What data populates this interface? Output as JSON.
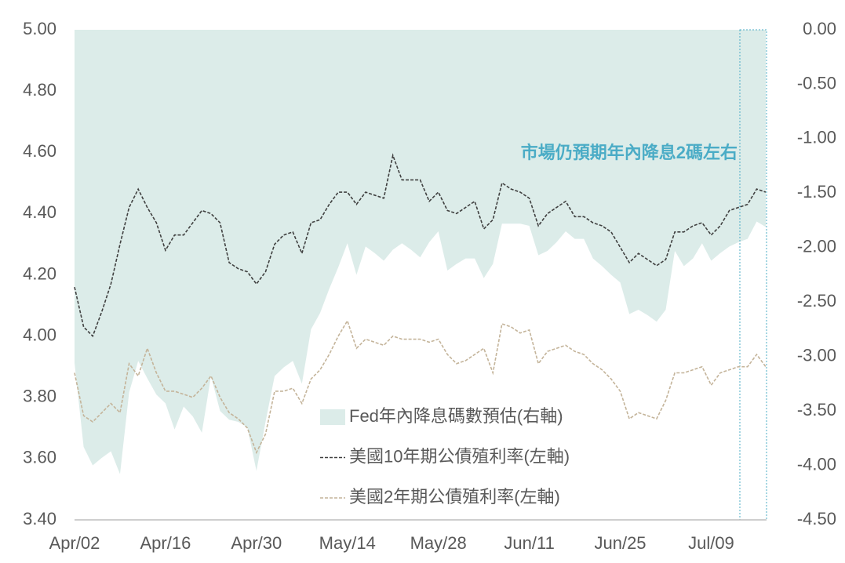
{
  "chart_data": {
    "type": "line",
    "annotation": "市場仍預期年內降息2碼左右",
    "categories": [
      "Apr/02",
      null,
      null,
      null,
      null,
      null,
      null,
      null,
      null,
      null,
      "Apr/16",
      null,
      null,
      null,
      null,
      null,
      null,
      null,
      null,
      null,
      "Apr/30",
      null,
      null,
      null,
      null,
      null,
      null,
      null,
      null,
      null,
      "May/14",
      null,
      null,
      null,
      null,
      null,
      null,
      null,
      null,
      null,
      "May/28",
      null,
      null,
      null,
      null,
      null,
      null,
      null,
      null,
      null,
      "Jun/11",
      null,
      null,
      null,
      null,
      null,
      null,
      null,
      null,
      null,
      "Jun/25",
      null,
      null,
      null,
      null,
      null,
      null,
      null,
      null,
      null,
      "Jul/09",
      null,
      null,
      null,
      null,
      null,
      null
    ],
    "ylim": [
      3.4,
      5.0
    ],
    "yticks": [
      {
        "value": 3.4,
        "label": "3.40"
      },
      {
        "value": 3.6,
        "label": "3.60"
      },
      {
        "value": 3.8,
        "label": "3.80"
      },
      {
        "value": 4.0,
        "label": "4.00"
      },
      {
        "value": 4.2,
        "label": "4.20"
      },
      {
        "value": 4.4,
        "label": "4.40"
      },
      {
        "value": 4.6,
        "label": "4.60"
      },
      {
        "value": 4.8,
        "label": "4.80"
      },
      {
        "value": 5.0,
        "label": "5.00"
      }
    ],
    "y2lim": [
      -4.5,
      0
    ],
    "y2ticks": [
      {
        "value": -4.5,
        "label": "-4.50"
      },
      {
        "value": -4.0,
        "label": "-4.00"
      },
      {
        "value": -3.5,
        "label": "-3.50"
      },
      {
        "value": -3.0,
        "label": "-3.00"
      },
      {
        "value": -2.5,
        "label": "-2.50"
      },
      {
        "value": -2.0,
        "label": "-2.00"
      },
      {
        "value": -1.5,
        "label": "-1.50"
      },
      {
        "value": -1.0,
        "label": "-1.00"
      },
      {
        "value": -0.5,
        "label": "-0.50"
      },
      {
        "value": 0,
        "label": "0.00"
      }
    ],
    "series": [
      {
        "name": "Fed年內降息碼數預估(右軸)",
        "type": "area",
        "axis": "y2",
        "color": "#dcece9",
        "values": [
          -3.06,
          -3.83,
          -4.0,
          -3.93,
          -3.87,
          -4.08,
          -3.33,
          -3.04,
          -3.2,
          -3.35,
          -3.43,
          -3.67,
          -3.46,
          -3.55,
          -3.7,
          -3.18,
          -3.5,
          -3.58,
          -3.6,
          -3.65,
          -4.05,
          -3.6,
          -3.18,
          -3.1,
          -3.04,
          -3.25,
          -2.75,
          -2.6,
          -2.38,
          -2.18,
          -1.96,
          -2.25,
          -1.99,
          -2.05,
          -2.12,
          -2.02,
          -1.96,
          -2.02,
          -2.09,
          -1.95,
          -1.85,
          -2.21,
          -2.15,
          -2.1,
          -2.1,
          -2.28,
          -2.15,
          -1.78,
          -1.78,
          -1.78,
          -1.8,
          -2.07,
          -2.03,
          -1.95,
          -1.85,
          -1.92,
          -1.92,
          -2.1,
          -2.17,
          -2.25,
          -2.32,
          -2.61,
          -2.57,
          -2.62,
          -2.68,
          -2.57,
          -2.03,
          -2.17,
          -2.1,
          -1.96,
          -2.12,
          -2.05,
          -1.99,
          -1.95,
          -1.92,
          -1.76,
          -1.81
        ]
      },
      {
        "name": "美國10年期公債殖利率(左軸)",
        "type": "line",
        "color": "#404040",
        "values": [
          4.16,
          4.03,
          4.0,
          4.08,
          4.17,
          4.3,
          4.42,
          4.48,
          4.42,
          4.37,
          4.28,
          4.33,
          4.33,
          4.37,
          4.41,
          4.4,
          4.37,
          4.24,
          4.22,
          4.21,
          4.17,
          4.21,
          4.3,
          4.33,
          4.34,
          4.27,
          4.37,
          4.38,
          4.43,
          4.47,
          4.47,
          4.43,
          4.47,
          4.46,
          4.45,
          4.59,
          4.51,
          4.51,
          4.51,
          4.44,
          4.47,
          4.41,
          4.4,
          4.42,
          4.44,
          4.35,
          4.38,
          4.5,
          4.48,
          4.47,
          4.45,
          4.36,
          4.4,
          4.42,
          4.44,
          4.39,
          4.39,
          4.37,
          4.36,
          4.34,
          4.29,
          4.24,
          4.27,
          4.25,
          4.23,
          4.25,
          4.34,
          4.34,
          4.36,
          4.37,
          4.33,
          4.36,
          4.41,
          4.42,
          4.43,
          4.48,
          4.47
        ]
      },
      {
        "name": "美國2年期公債殖利率(左軸)",
        "type": "line",
        "color": "#c4b49a",
        "values": [
          3.88,
          3.74,
          3.72,
          3.75,
          3.78,
          3.75,
          3.91,
          3.87,
          3.96,
          3.88,
          3.82,
          3.82,
          3.81,
          3.8,
          3.83,
          3.87,
          3.8,
          3.75,
          3.73,
          3.7,
          3.62,
          3.68,
          3.82,
          3.82,
          3.83,
          3.78,
          3.86,
          3.89,
          3.94,
          4.0,
          4.05,
          3.96,
          3.99,
          3.98,
          3.97,
          4.0,
          3.99,
          3.99,
          3.99,
          3.98,
          3.99,
          3.94,
          3.91,
          3.92,
          3.94,
          3.96,
          3.88,
          4.04,
          4.03,
          4.01,
          4.02,
          3.91,
          3.95,
          3.96,
          3.97,
          3.95,
          3.94,
          3.91,
          3.89,
          3.86,
          3.82,
          3.73,
          3.75,
          3.74,
          3.73,
          3.79,
          3.88,
          3.88,
          3.89,
          3.9,
          3.84,
          3.88,
          3.89,
          3.9,
          3.9,
          3.94,
          3.9
        ]
      }
    ]
  }
}
